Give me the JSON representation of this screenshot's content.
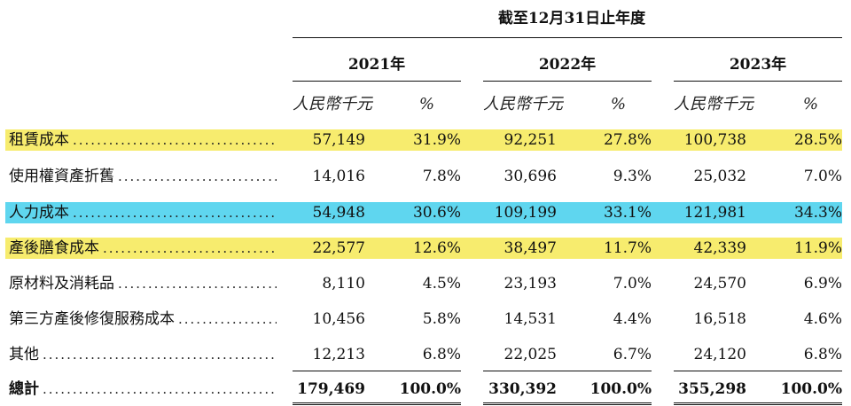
{
  "header": {
    "period": "截至12月31日止年度",
    "years": [
      "2021年",
      "2022年",
      "2023年"
    ],
    "unit_currency": "人民幣千元",
    "unit_percent": "%"
  },
  "highlight_colors": {
    "yellow": "#f7ec6e",
    "cyan": "#5fd6ef"
  },
  "rows": [
    {
      "label": "租賃成本",
      "highlight": "yellow",
      "values": [
        "57,149",
        "31.9%",
        "92,251",
        "27.8%",
        "100,738",
        "28.5%"
      ]
    },
    {
      "label": "使用權資產折舊",
      "highlight": "",
      "values": [
        "14,016",
        "7.8%",
        "30,696",
        "9.3%",
        "25,032",
        "7.0%"
      ]
    },
    {
      "label": "人力成本",
      "highlight": "cyan",
      "values": [
        "54,948",
        "30.6%",
        "109,199",
        "33.1%",
        "121,981",
        "34.3%"
      ]
    },
    {
      "label": "產後膳食成本",
      "highlight": "yellow",
      "values": [
        "22,577",
        "12.6%",
        "38,497",
        "11.7%",
        "42,339",
        "11.9%"
      ]
    },
    {
      "label": "原材料及消耗品",
      "highlight": "",
      "values": [
        "8,110",
        "4.5%",
        "23,193",
        "7.0%",
        "24,570",
        "6.9%"
      ]
    },
    {
      "label": "第三方產後修復服務成本",
      "highlight": "",
      "values": [
        "10,456",
        "5.8%",
        "14,531",
        "4.4%",
        "16,518",
        "4.6%"
      ]
    },
    {
      "label": "其他",
      "highlight": "",
      "values": [
        "12,213",
        "6.8%",
        "22,025",
        "6.7%",
        "24,120",
        "6.8%"
      ]
    }
  ],
  "total": {
    "label": "總計",
    "values": [
      "179,469",
      "100.0%",
      "330,392",
      "100.0%",
      "355,298",
      "100.0%"
    ]
  }
}
